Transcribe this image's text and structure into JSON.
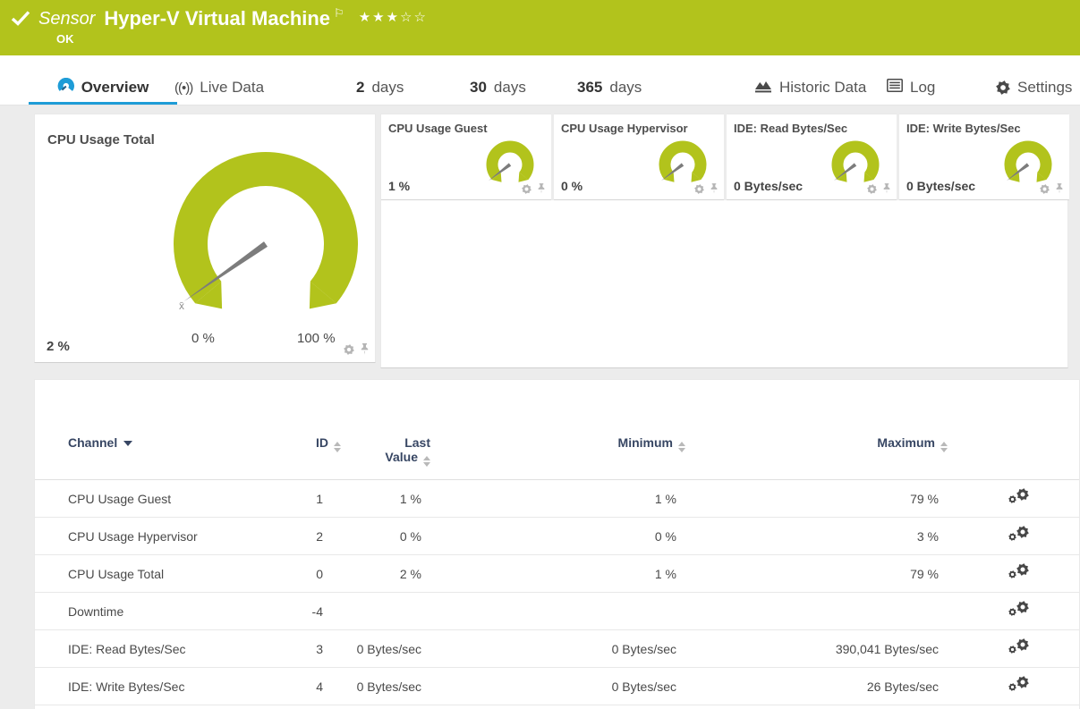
{
  "colors": {
    "accent_green": "#b2c31c",
    "accent_blue": "#1e9cd7",
    "needle_gray": "#7c7c7c",
    "table_header": "#374663"
  },
  "header": {
    "sensor_label": "Sensor",
    "sensor_name": "Hyper-V Virtual Machine",
    "status": "OK",
    "flag_glyph": "⚐",
    "stars": "★★★☆☆",
    "stars_filled": 3,
    "stars_total": 5
  },
  "tabs": {
    "overview": {
      "label": "Overview"
    },
    "live": {
      "label": "Live Data",
      "icon_glyph": "((•))"
    },
    "d2": {
      "num": "2",
      "unit": "days"
    },
    "d30": {
      "num": "30",
      "unit": "days"
    },
    "d365": {
      "num": "365",
      "unit": "days"
    },
    "historic": {
      "label": "Historic Data"
    },
    "log": {
      "label": "Log"
    },
    "settings": {
      "label": "Settings"
    }
  },
  "gauges": {
    "main": {
      "title": "CPU Usage Total",
      "value": "2 %",
      "value_numeric": 2,
      "min_label": "0 %",
      "max_label": "100 %",
      "avg_marker": "x̄"
    },
    "small": [
      {
        "title": "CPU Usage Guest",
        "value": "1 %"
      },
      {
        "title": "CPU Usage Hypervisor",
        "value": "0 %"
      },
      {
        "title": "IDE: Read Bytes/Sec",
        "value": "0 Bytes/sec"
      },
      {
        "title": "IDE: Write Bytes/Sec",
        "value": "0 Bytes/sec"
      }
    ]
  },
  "table": {
    "columns": {
      "channel": "Channel",
      "id": "ID",
      "last_line1": "Last",
      "last_line2": "Value",
      "minimum": "Minimum",
      "maximum": "Maximum"
    },
    "rows": [
      {
        "channel": "CPU Usage Guest",
        "id": "1",
        "last": "1 %",
        "min": "1 %",
        "max": "79 %"
      },
      {
        "channel": "CPU Usage Hypervisor",
        "id": "2",
        "last": "0 %",
        "min": "0 %",
        "max": "3 %"
      },
      {
        "channel": "CPU Usage Total",
        "id": "0",
        "last": "2 %",
        "min": "1 %",
        "max": "79 %"
      },
      {
        "channel": "Downtime",
        "id": "-4",
        "last": "",
        "min": "",
        "max": ""
      },
      {
        "channel": "IDE: Read Bytes/Sec",
        "id": "3",
        "last": "0 Bytes/sec",
        "min": "0 Bytes/sec",
        "max": "390,041 Bytes/sec"
      },
      {
        "channel": "IDE: Write Bytes/Sec",
        "id": "4",
        "last": "0 Bytes/sec",
        "min": "0 Bytes/sec",
        "max": "26 Bytes/sec"
      }
    ]
  }
}
